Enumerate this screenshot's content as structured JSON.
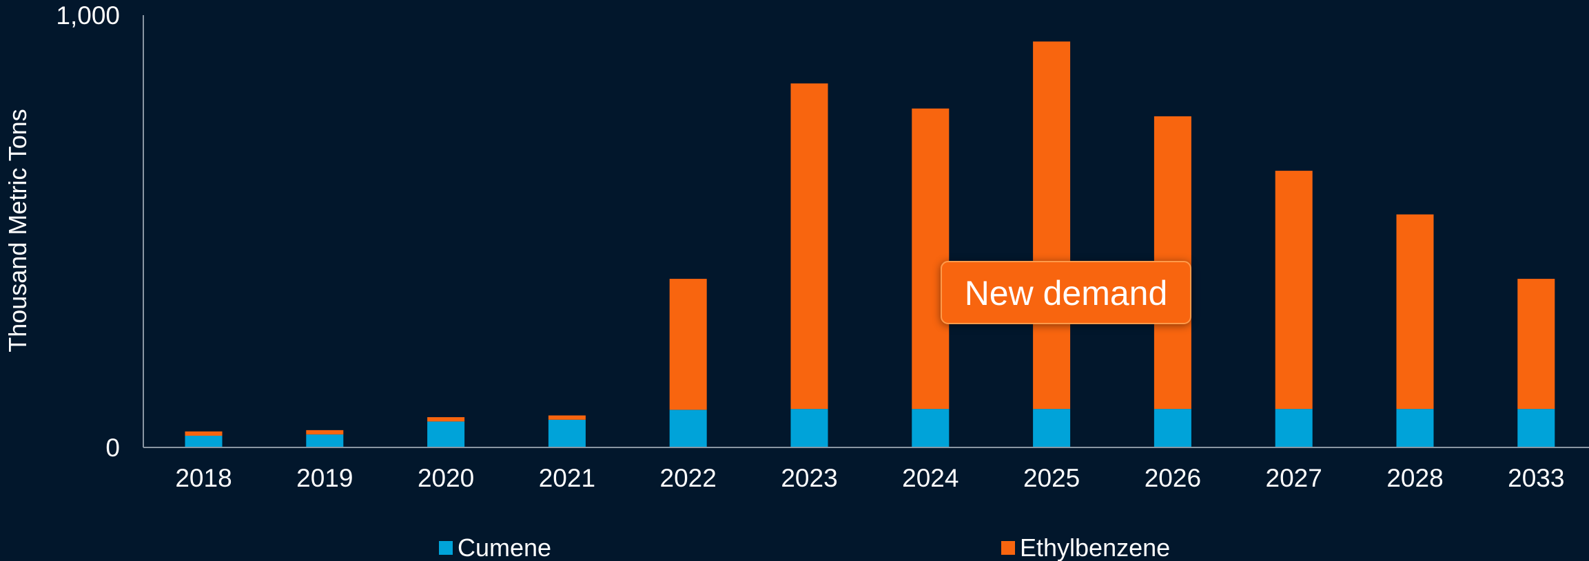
{
  "chart_data": {
    "type": "bar",
    "stacked": true,
    "categories": [
      "2018",
      "2019",
      "2020",
      "2021",
      "2022",
      "2023",
      "2024",
      "2025",
      "2026",
      "2027",
      "2028",
      "2033"
    ],
    "series": [
      {
        "name": "Cumene",
        "color": "#00a3d9",
        "values": [
          27,
          30,
          60,
          64,
          87,
          89,
          89,
          89,
          89,
          89,
          89,
          89
        ]
      },
      {
        "name": "Ethylbenzene",
        "color": "#f8650f",
        "values": [
          10,
          10,
          10,
          10,
          303,
          753,
          695,
          850,
          677,
          551,
          450,
          301
        ]
      }
    ],
    "xlabel": "",
    "ylabel": "Thousand Metric Tons",
    "ylim": [
      0,
      1000
    ],
    "ytick_labels": [
      "0",
      "1,000"
    ],
    "grid": false,
    "legend_position": "bottom",
    "annotation": "New demand",
    "annotation_color": "#f8650f"
  }
}
